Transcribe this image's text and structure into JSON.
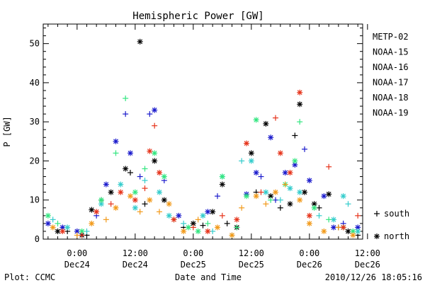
{
  "footer": {
    "plot_credit": "Plot: CCMC",
    "timestamp": "2010/12/26 18:05:16"
  },
  "chart_data": {
    "type": "scatter",
    "title": "Hemispheric Power [GW]",
    "xlabel": "Date and Time",
    "ylabel": "P [GW]",
    "ylim": [
      0,
      55
    ],
    "xlim_hours": [
      -7,
      59
    ],
    "x_unit": "hours since 2010-12-24 00:00 UT",
    "yticks": [
      0,
      10,
      20,
      30,
      40,
      50
    ],
    "xticks": [
      {
        "hour": 0,
        "time": "0:00",
        "date": "Dec24"
      },
      {
        "hour": 12,
        "time": "12:00",
        "date": "Dec24"
      },
      {
        "hour": 24,
        "time": "0:00",
        "date": "Dec25"
      },
      {
        "hour": 36,
        "time": "12:00",
        "date": "Dec25"
      },
      {
        "hour": 48,
        "time": "0:00",
        "date": "Dec26"
      },
      {
        "hour": 60,
        "time": "12:00",
        "date": "Dec26"
      }
    ],
    "grid": false,
    "legend_position": "right",
    "marker_legend": [
      {
        "symbol": "+",
        "label": "south"
      },
      {
        "symbol": "*",
        "label": "north"
      }
    ],
    "series": [
      {
        "name": "METP-02",
        "color": "#000000",
        "points": [
          {
            "x": -4,
            "y": 2,
            "m": "*"
          },
          {
            "x": -2,
            "y": 2,
            "m": "+"
          },
          {
            "x": 1,
            "y": 1,
            "m": "*"
          },
          {
            "x": 2,
            "y": 1,
            "m": "+"
          },
          {
            "x": 3,
            "y": 7.5,
            "m": "*"
          },
          {
            "x": 5,
            "y": 10,
            "m": "+"
          },
          {
            "x": 7,
            "y": 12,
            "m": "*"
          },
          {
            "x": 10,
            "y": 18,
            "m": "*"
          },
          {
            "x": 11,
            "y": 17,
            "m": "+"
          },
          {
            "x": 13,
            "y": 50.5,
            "m": "*"
          },
          {
            "x": 14,
            "y": 9,
            "m": "+"
          },
          {
            "x": 16,
            "y": 20,
            "m": "*"
          },
          {
            "x": 18,
            "y": 10,
            "m": "*"
          },
          {
            "x": 22,
            "y": 3,
            "m": "+"
          },
          {
            "x": 24,
            "y": 4,
            "m": "*"
          },
          {
            "x": 26,
            "y": 3.5,
            "m": "+"
          },
          {
            "x": 28,
            "y": 7,
            "m": "*"
          },
          {
            "x": 30,
            "y": 14,
            "m": "*"
          },
          {
            "x": 31,
            "y": 4,
            "m": "+"
          },
          {
            "x": 33,
            "y": 3,
            "m": "*"
          },
          {
            "x": 36,
            "y": 22,
            "m": "*"
          },
          {
            "x": 37,
            "y": 12,
            "m": "+"
          },
          {
            "x": 39,
            "y": 29.5,
            "m": "*"
          },
          {
            "x": 40,
            "y": 11,
            "m": "*"
          },
          {
            "x": 42,
            "y": 8,
            "m": "+"
          },
          {
            "x": 44,
            "y": 9,
            "m": "*"
          },
          {
            "x": 45,
            "y": 26.5,
            "m": "+"
          },
          {
            "x": 46,
            "y": 34.5,
            "m": "*"
          },
          {
            "x": 47,
            "y": 12,
            "m": "*"
          },
          {
            "x": 49,
            "y": 9,
            "m": "*"
          },
          {
            "x": 50,
            "y": 8,
            "m": "+"
          },
          {
            "x": 52,
            "y": 11.5,
            "m": "*"
          },
          {
            "x": 54,
            "y": 3,
            "m": "+"
          },
          {
            "x": 56,
            "y": 2,
            "m": "*"
          },
          {
            "x": 58,
            "y": 1,
            "m": "+"
          }
        ]
      },
      {
        "name": "NOAA-15",
        "color": "#1a1acc",
        "points": [
          {
            "x": -6,
            "y": 4,
            "m": "*"
          },
          {
            "x": -3,
            "y": 3,
            "m": "*"
          },
          {
            "x": 0,
            "y": 2,
            "m": "*"
          },
          {
            "x": 4,
            "y": 6,
            "m": "+"
          },
          {
            "x": 6,
            "y": 14,
            "m": "*"
          },
          {
            "x": 8,
            "y": 25,
            "m": "*"
          },
          {
            "x": 10,
            "y": 32,
            "m": "+"
          },
          {
            "x": 11,
            "y": 22,
            "m": "*"
          },
          {
            "x": 13,
            "y": 16,
            "m": "+"
          },
          {
            "x": 15,
            "y": 32,
            "m": "+"
          },
          {
            "x": 16,
            "y": 33,
            "m": "*"
          },
          {
            "x": 18,
            "y": 15,
            "m": "+"
          },
          {
            "x": 21,
            "y": 6,
            "m": "*"
          },
          {
            "x": 27,
            "y": 7,
            "m": "*"
          },
          {
            "x": 29,
            "y": 11,
            "m": "+"
          },
          {
            "x": 35,
            "y": 11.5,
            "m": "*"
          },
          {
            "x": 37,
            "y": 17,
            "m": "*"
          },
          {
            "x": 38,
            "y": 16,
            "m": "+"
          },
          {
            "x": 40,
            "y": 26,
            "m": "*"
          },
          {
            "x": 41,
            "y": 10,
            "m": "+"
          },
          {
            "x": 43,
            "y": 17,
            "m": "*"
          },
          {
            "x": 45,
            "y": 19,
            "m": "*"
          },
          {
            "x": 47,
            "y": 23,
            "m": "+"
          },
          {
            "x": 48,
            "y": 15,
            "m": "*"
          },
          {
            "x": 51,
            "y": 11,
            "m": "*"
          },
          {
            "x": 53,
            "y": 3,
            "m": "*"
          },
          {
            "x": 55,
            "y": 4,
            "m": "+"
          },
          {
            "x": 58,
            "y": 3,
            "m": "*"
          }
        ]
      },
      {
        "name": "NOAA-16",
        "color": "#33cccc",
        "points": [
          {
            "x": -5,
            "y": 5,
            "m": "+"
          },
          {
            "x": -2,
            "y": 3,
            "m": "*"
          },
          {
            "x": 2,
            "y": 2,
            "m": "+"
          },
          {
            "x": 5,
            "y": 9,
            "m": "*"
          },
          {
            "x": 9,
            "y": 14,
            "m": "*"
          },
          {
            "x": 12,
            "y": 8,
            "m": "*"
          },
          {
            "x": 14,
            "y": 15,
            "m": "+"
          },
          {
            "x": 17,
            "y": 12,
            "m": "*"
          },
          {
            "x": 19,
            "y": 6,
            "m": "*"
          },
          {
            "x": 22,
            "y": 4,
            "m": "+"
          },
          {
            "x": 26,
            "y": 6,
            "m": "*"
          },
          {
            "x": 28,
            "y": 2,
            "m": "+"
          },
          {
            "x": 30,
            "y": 16,
            "m": "*"
          },
          {
            "x": 32,
            "y": 1,
            "m": "+"
          },
          {
            "x": 34,
            "y": 20,
            "m": "+"
          },
          {
            "x": 36,
            "y": 20,
            "m": "*"
          },
          {
            "x": 39,
            "y": 12,
            "m": "*"
          },
          {
            "x": 42,
            "y": 10,
            "m": "+"
          },
          {
            "x": 44,
            "y": 13,
            "m": "*"
          },
          {
            "x": 46,
            "y": 12,
            "m": "*"
          },
          {
            "x": 50,
            "y": 6,
            "m": "+"
          },
          {
            "x": 53,
            "y": 5,
            "m": "*"
          },
          {
            "x": 55,
            "y": 11,
            "m": "*"
          },
          {
            "x": 56,
            "y": 9,
            "m": "+"
          },
          {
            "x": 58,
            "y": 2,
            "m": "*"
          }
        ]
      },
      {
        "name": "NOAA-17",
        "color": "#33e680",
        "points": [
          {
            "x": -6,
            "y": 6,
            "m": "*"
          },
          {
            "x": -4,
            "y": 4,
            "m": "+"
          },
          {
            "x": 1,
            "y": 2,
            "m": "*"
          },
          {
            "x": 5,
            "y": 10,
            "m": "*"
          },
          {
            "x": 8,
            "y": 22,
            "m": "+"
          },
          {
            "x": 10,
            "y": 36,
            "m": "+"
          },
          {
            "x": 12,
            "y": 12,
            "m": "*"
          },
          {
            "x": 14,
            "y": 18,
            "m": "+"
          },
          {
            "x": 16,
            "y": 22,
            "m": "*"
          },
          {
            "x": 18,
            "y": 16,
            "m": "*"
          },
          {
            "x": 20,
            "y": 5,
            "m": "+"
          },
          {
            "x": 23,
            "y": 3,
            "m": "*"
          },
          {
            "x": 25,
            "y": 2,
            "m": "*"
          },
          {
            "x": 27,
            "y": 4,
            "m": "+"
          },
          {
            "x": 30,
            "y": 16,
            "m": "*"
          },
          {
            "x": 33,
            "y": 3,
            "m": "+"
          },
          {
            "x": 35,
            "y": 11,
            "m": "*"
          },
          {
            "x": 37,
            "y": 30.5,
            "m": "*"
          },
          {
            "x": 40,
            "y": 10,
            "m": "+"
          },
          {
            "x": 43,
            "y": 14,
            "m": "*"
          },
          {
            "x": 45,
            "y": 20,
            "m": "*"
          },
          {
            "x": 46,
            "y": 30,
            "m": "+"
          },
          {
            "x": 49,
            "y": 8,
            "m": "*"
          },
          {
            "x": 52,
            "y": 5,
            "m": "+"
          },
          {
            "x": 55,
            "y": 3,
            "m": "*"
          },
          {
            "x": 57,
            "y": 2,
            "m": "*"
          }
        ]
      },
      {
        "name": "NOAA-18",
        "color": "#f29a1a",
        "points": [
          {
            "x": -5,
            "y": 3,
            "m": "*"
          },
          {
            "x": 0,
            "y": 1,
            "m": "+"
          },
          {
            "x": 3,
            "y": 4,
            "m": "*"
          },
          {
            "x": 6,
            "y": 5,
            "m": "+"
          },
          {
            "x": 8,
            "y": 8,
            "m": "*"
          },
          {
            "x": 11,
            "y": 11,
            "m": "*"
          },
          {
            "x": 13,
            "y": 7,
            "m": "+"
          },
          {
            "x": 15,
            "y": 10,
            "m": "*"
          },
          {
            "x": 17,
            "y": 7,
            "m": "+"
          },
          {
            "x": 19,
            "y": 9,
            "m": "*"
          },
          {
            "x": 22,
            "y": 2,
            "m": "*"
          },
          {
            "x": 25,
            "y": 5,
            "m": "+"
          },
          {
            "x": 29,
            "y": 3,
            "m": "*"
          },
          {
            "x": 32,
            "y": 1,
            "m": "*"
          },
          {
            "x": 34,
            "y": 8,
            "m": "+"
          },
          {
            "x": 37,
            "y": 11,
            "m": "*"
          },
          {
            "x": 39,
            "y": 9,
            "m": "+"
          },
          {
            "x": 41,
            "y": 12,
            "m": "*"
          },
          {
            "x": 43,
            "y": 14,
            "m": "+"
          },
          {
            "x": 46,
            "y": 10,
            "m": "*"
          },
          {
            "x": 48,
            "y": 4,
            "m": "*"
          },
          {
            "x": 51,
            "y": 2,
            "m": "*"
          },
          {
            "x": 54,
            "y": 3,
            "m": "+"
          },
          {
            "x": 57,
            "y": 1,
            "m": "*"
          }
        ]
      },
      {
        "name": "NOAA-19",
        "color": "#e6331a",
        "points": [
          {
            "x": -3,
            "y": 2,
            "m": "*"
          },
          {
            "x": 1,
            "y": 1,
            "m": "+"
          },
          {
            "x": 4,
            "y": 7,
            "m": "*"
          },
          {
            "x": 7,
            "y": 9,
            "m": "+"
          },
          {
            "x": 9,
            "y": 12,
            "m": "*"
          },
          {
            "x": 12,
            "y": 10,
            "m": "*"
          },
          {
            "x": 14,
            "y": 13,
            "m": "+"
          },
          {
            "x": 15,
            "y": 22.5,
            "m": "*"
          },
          {
            "x": 16,
            "y": 29,
            "m": "+"
          },
          {
            "x": 17,
            "y": 17,
            "m": "*"
          },
          {
            "x": 20,
            "y": 5,
            "m": "*"
          },
          {
            "x": 24,
            "y": 3,
            "m": "+"
          },
          {
            "x": 27,
            "y": 2,
            "m": "*"
          },
          {
            "x": 30,
            "y": 6,
            "m": "+"
          },
          {
            "x": 33,
            "y": 5,
            "m": "*"
          },
          {
            "x": 35,
            "y": 24.5,
            "m": "*"
          },
          {
            "x": 38,
            "y": 12,
            "m": "+"
          },
          {
            "x": 41,
            "y": 31,
            "m": "+"
          },
          {
            "x": 42,
            "y": 22,
            "m": "*"
          },
          {
            "x": 44,
            "y": 17,
            "m": "*"
          },
          {
            "x": 46,
            "y": 37.5,
            "m": "*"
          },
          {
            "x": 48,
            "y": 6,
            "m": "*"
          },
          {
            "x": 52,
            "y": 18.5,
            "m": "+"
          },
          {
            "x": 55,
            "y": 3,
            "m": "*"
          },
          {
            "x": 58,
            "y": 6,
            "m": "+"
          }
        ]
      }
    ]
  }
}
